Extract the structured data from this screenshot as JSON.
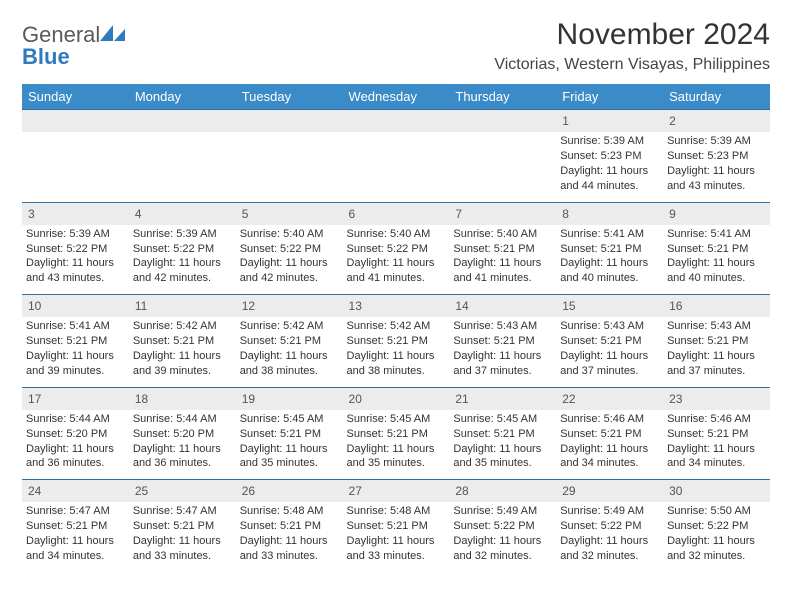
{
  "brand": {
    "text1": "General",
    "text2": "Blue",
    "color_primary": "#2f7bbf",
    "color_text": "#5a5a5a"
  },
  "title": "November 2024",
  "location": "Victorias, Western Visayas, Philippines",
  "colors": {
    "header_bg": "#3b8bc9",
    "header_fg": "#ffffff",
    "daynum_bg": "#ececec",
    "rule": "#2f6fa3",
    "body_text": "#333333"
  },
  "weekdays": [
    "Sunday",
    "Monday",
    "Tuesday",
    "Wednesday",
    "Thursday",
    "Friday",
    "Saturday"
  ],
  "weeks": [
    [
      null,
      null,
      null,
      null,
      null,
      {
        "n": "1",
        "sr": "Sunrise: 5:39 AM",
        "ss": "Sunset: 5:23 PM",
        "dl1": "Daylight: 11 hours",
        "dl2": "and 44 minutes."
      },
      {
        "n": "2",
        "sr": "Sunrise: 5:39 AM",
        "ss": "Sunset: 5:23 PM",
        "dl1": "Daylight: 11 hours",
        "dl2": "and 43 minutes."
      }
    ],
    [
      {
        "n": "3",
        "sr": "Sunrise: 5:39 AM",
        "ss": "Sunset: 5:22 PM",
        "dl1": "Daylight: 11 hours",
        "dl2": "and 43 minutes."
      },
      {
        "n": "4",
        "sr": "Sunrise: 5:39 AM",
        "ss": "Sunset: 5:22 PM",
        "dl1": "Daylight: 11 hours",
        "dl2": "and 42 minutes."
      },
      {
        "n": "5",
        "sr": "Sunrise: 5:40 AM",
        "ss": "Sunset: 5:22 PM",
        "dl1": "Daylight: 11 hours",
        "dl2": "and 42 minutes."
      },
      {
        "n": "6",
        "sr": "Sunrise: 5:40 AM",
        "ss": "Sunset: 5:22 PM",
        "dl1": "Daylight: 11 hours",
        "dl2": "and 41 minutes."
      },
      {
        "n": "7",
        "sr": "Sunrise: 5:40 AM",
        "ss": "Sunset: 5:21 PM",
        "dl1": "Daylight: 11 hours",
        "dl2": "and 41 minutes."
      },
      {
        "n": "8",
        "sr": "Sunrise: 5:41 AM",
        "ss": "Sunset: 5:21 PM",
        "dl1": "Daylight: 11 hours",
        "dl2": "and 40 minutes."
      },
      {
        "n": "9",
        "sr": "Sunrise: 5:41 AM",
        "ss": "Sunset: 5:21 PM",
        "dl1": "Daylight: 11 hours",
        "dl2": "and 40 minutes."
      }
    ],
    [
      {
        "n": "10",
        "sr": "Sunrise: 5:41 AM",
        "ss": "Sunset: 5:21 PM",
        "dl1": "Daylight: 11 hours",
        "dl2": "and 39 minutes."
      },
      {
        "n": "11",
        "sr": "Sunrise: 5:42 AM",
        "ss": "Sunset: 5:21 PM",
        "dl1": "Daylight: 11 hours",
        "dl2": "and 39 minutes."
      },
      {
        "n": "12",
        "sr": "Sunrise: 5:42 AM",
        "ss": "Sunset: 5:21 PM",
        "dl1": "Daylight: 11 hours",
        "dl2": "and 38 minutes."
      },
      {
        "n": "13",
        "sr": "Sunrise: 5:42 AM",
        "ss": "Sunset: 5:21 PM",
        "dl1": "Daylight: 11 hours",
        "dl2": "and 38 minutes."
      },
      {
        "n": "14",
        "sr": "Sunrise: 5:43 AM",
        "ss": "Sunset: 5:21 PM",
        "dl1": "Daylight: 11 hours",
        "dl2": "and 37 minutes."
      },
      {
        "n": "15",
        "sr": "Sunrise: 5:43 AM",
        "ss": "Sunset: 5:21 PM",
        "dl1": "Daylight: 11 hours",
        "dl2": "and 37 minutes."
      },
      {
        "n": "16",
        "sr": "Sunrise: 5:43 AM",
        "ss": "Sunset: 5:21 PM",
        "dl1": "Daylight: 11 hours",
        "dl2": "and 37 minutes."
      }
    ],
    [
      {
        "n": "17",
        "sr": "Sunrise: 5:44 AM",
        "ss": "Sunset: 5:20 PM",
        "dl1": "Daylight: 11 hours",
        "dl2": "and 36 minutes."
      },
      {
        "n": "18",
        "sr": "Sunrise: 5:44 AM",
        "ss": "Sunset: 5:20 PM",
        "dl1": "Daylight: 11 hours",
        "dl2": "and 36 minutes."
      },
      {
        "n": "19",
        "sr": "Sunrise: 5:45 AM",
        "ss": "Sunset: 5:21 PM",
        "dl1": "Daylight: 11 hours",
        "dl2": "and 35 minutes."
      },
      {
        "n": "20",
        "sr": "Sunrise: 5:45 AM",
        "ss": "Sunset: 5:21 PM",
        "dl1": "Daylight: 11 hours",
        "dl2": "and 35 minutes."
      },
      {
        "n": "21",
        "sr": "Sunrise: 5:45 AM",
        "ss": "Sunset: 5:21 PM",
        "dl1": "Daylight: 11 hours",
        "dl2": "and 35 minutes."
      },
      {
        "n": "22",
        "sr": "Sunrise: 5:46 AM",
        "ss": "Sunset: 5:21 PM",
        "dl1": "Daylight: 11 hours",
        "dl2": "and 34 minutes."
      },
      {
        "n": "23",
        "sr": "Sunrise: 5:46 AM",
        "ss": "Sunset: 5:21 PM",
        "dl1": "Daylight: 11 hours",
        "dl2": "and 34 minutes."
      }
    ],
    [
      {
        "n": "24",
        "sr": "Sunrise: 5:47 AM",
        "ss": "Sunset: 5:21 PM",
        "dl1": "Daylight: 11 hours",
        "dl2": "and 34 minutes."
      },
      {
        "n": "25",
        "sr": "Sunrise: 5:47 AM",
        "ss": "Sunset: 5:21 PM",
        "dl1": "Daylight: 11 hours",
        "dl2": "and 33 minutes."
      },
      {
        "n": "26",
        "sr": "Sunrise: 5:48 AM",
        "ss": "Sunset: 5:21 PM",
        "dl1": "Daylight: 11 hours",
        "dl2": "and 33 minutes."
      },
      {
        "n": "27",
        "sr": "Sunrise: 5:48 AM",
        "ss": "Sunset: 5:21 PM",
        "dl1": "Daylight: 11 hours",
        "dl2": "and 33 minutes."
      },
      {
        "n": "28",
        "sr": "Sunrise: 5:49 AM",
        "ss": "Sunset: 5:22 PM",
        "dl1": "Daylight: 11 hours",
        "dl2": "and 32 minutes."
      },
      {
        "n": "29",
        "sr": "Sunrise: 5:49 AM",
        "ss": "Sunset: 5:22 PM",
        "dl1": "Daylight: 11 hours",
        "dl2": "and 32 minutes."
      },
      {
        "n": "30",
        "sr": "Sunrise: 5:50 AM",
        "ss": "Sunset: 5:22 PM",
        "dl1": "Daylight: 11 hours",
        "dl2": "and 32 minutes."
      }
    ]
  ]
}
